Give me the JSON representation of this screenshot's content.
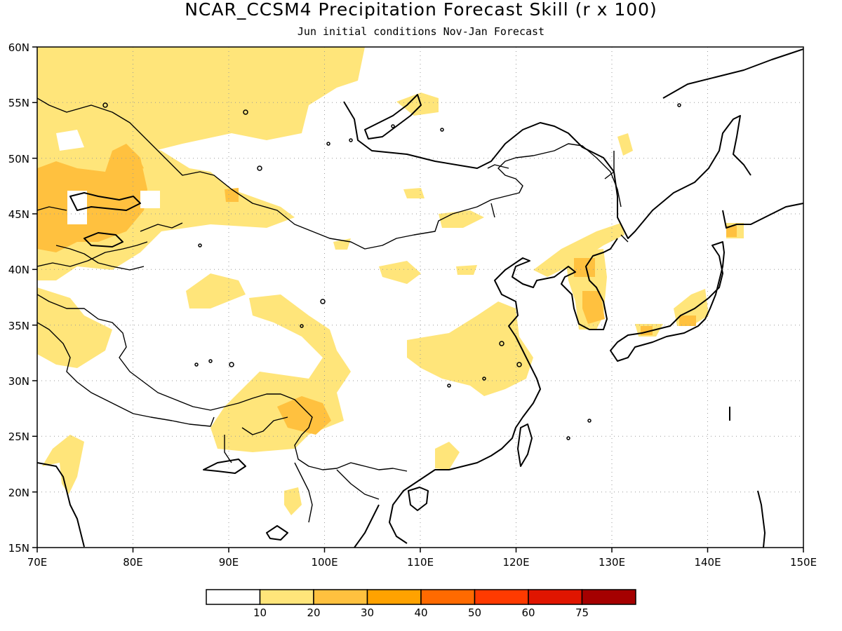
{
  "title": "NCAR_CCSM4 Precipitation Forecast Skill (r x 100)",
  "subtitle": "Jun initial conditions  Nov-Jan Forecast",
  "map": {
    "lon_range": [
      70,
      150
    ],
    "lat_range": [
      15,
      60
    ],
    "lon_ticks": [
      "70E",
      "80E",
      "90E",
      "100E",
      "110E",
      "120E",
      "130E",
      "140E",
      "150E"
    ],
    "lat_ticks": [
      "60N",
      "55N",
      "50N",
      "45N",
      "40N",
      "35N",
      "30N",
      "25N",
      "20N",
      "15N"
    ],
    "gridlines": "dotted"
  },
  "colorbar": {
    "colors": [
      "#ffffff",
      "#ffe57a",
      "#ffc13f",
      "#ffa200",
      "#ff6a00",
      "#ff3a00",
      "#e01500",
      "#a50000"
    ],
    "labels": [
      "10",
      "20",
      "30",
      "40",
      "50",
      "60",
      "75"
    ]
  }
}
